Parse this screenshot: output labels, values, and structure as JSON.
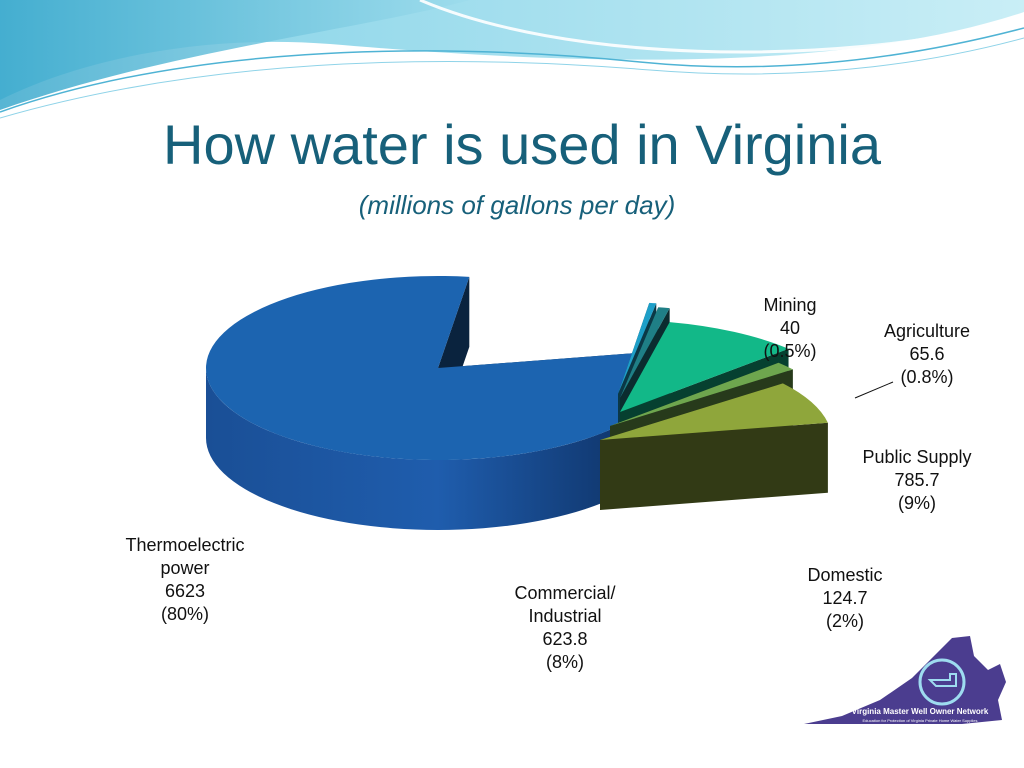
{
  "slide": {
    "title": "How water is used in Virginia",
    "subtitle": "(millions of gallons per day)",
    "logo": {
      "name": "Virginia Master Well Owner Network",
      "tagline": "Education for Protection of Virginia Private Home Water Supplies"
    }
  },
  "colors": {
    "title": "#17607a",
    "wave_light": "#aee6f2",
    "wave_mid": "#5bbcd9",
    "logo_purple": "#4b3d8f"
  },
  "chart_data": {
    "type": "pie",
    "title": "How water is used in Virginia",
    "subtitle": "(millions of gallons per day)",
    "style": "3D exploded pie",
    "units": "millions of gallons per day",
    "slices": [
      {
        "name": "Thermoelectric power",
        "value": 6623,
        "percent": "80%",
        "value_label": "6623",
        "percent_label": "(80%)",
        "color": "#1c64b0"
      },
      {
        "name": "Mining",
        "value": 40,
        "percent": "0.5%",
        "value_label": "40",
        "percent_label": "(0.5%)",
        "color": "#1e9fc8"
      },
      {
        "name": "Agriculture",
        "value": 65.6,
        "percent": "0.8%",
        "value_label": "65.6",
        "percent_label": "(0.8%)",
        "color": "#1f7f86"
      },
      {
        "name": "Public Supply",
        "value": 785.7,
        "percent": "9%",
        "value_label": "785.7",
        "percent_label": "(9%)",
        "color": "#12b888"
      },
      {
        "name": "Domestic",
        "value": 124.7,
        "percent": "2%",
        "value_label": "124.7",
        "percent_label": "(2%)",
        "color": "#6ea64e"
      },
      {
        "name": "Commercial/ Industrial",
        "value": 623.8,
        "percent": "8%",
        "value_label": "623.8",
        "percent_label": "(8%)",
        "color": "#8fa63b"
      }
    ],
    "labels": {
      "thermo": {
        "line1": "Thermoelectric",
        "line2": "power",
        "value": "6623",
        "pct": "(80%)"
      },
      "mining": {
        "line1": "Mining",
        "value": "40",
        "pct": "(0.5%)"
      },
      "agri": {
        "line1": "Agriculture",
        "value": "65.6",
        "pct": "(0.8%)"
      },
      "public": {
        "line1": "Public Supply",
        "value": "785.7",
        "pct": "(9%)"
      },
      "domestic": {
        "line1": "Domestic",
        "value": "124.7",
        "pct": "(2%)"
      },
      "commercial": {
        "line1": "Commercial/",
        "line2": "Industrial",
        "value": "623.8",
        "pct": "(8%)"
      }
    }
  }
}
